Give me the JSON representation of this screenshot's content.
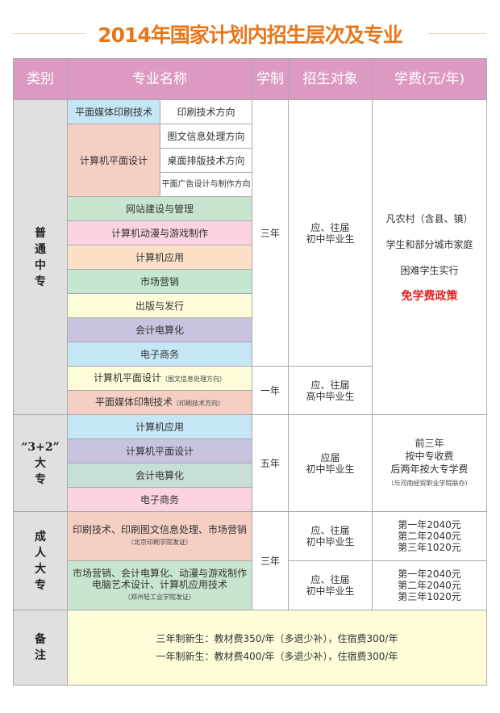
{
  "title": "2014年国家计划内招生层次及专业",
  "header": [
    "类别",
    "专业名称",
    "学制",
    "招生对象",
    "学费(元/年)"
  ],
  "colors": {
    "title": "#e8761a",
    "header": "#dc9ac2",
    "highlight": "#e62020"
  },
  "zhongzhuan": {
    "category": [
      "普",
      "通",
      "中",
      "专"
    ],
    "row1": {
      "major": "平面媒体印刷技术",
      "direction": "印刷技术方向"
    },
    "group": {
      "major": "计算机平面设计",
      "directions": [
        "图文信息处理方向",
        "桌面排版技术方向",
        "平面广告设计与制作方向"
      ]
    },
    "majors": [
      "网站建设与管理",
      "计算机动漫与游戏制作",
      "计算机应用",
      "市场营销",
      "出版与发行",
      "会计电算化",
      "电子商务"
    ],
    "duration": "三年",
    "target": [
      "应、往届",
      "初中毕业生"
    ],
    "fee": [
      "凡农村（含县、镇）",
      "学生和部分城市家庭",
      "困难学生实行"
    ],
    "fee_highlight": "免学费政策",
    "one_year": {
      "majors": [
        {
          "name": "计算机平面设计",
          "note": "（图文信息处理方向）"
        },
        {
          "name": "平面媒体印制技术",
          "note": "（印刷技术方向）"
        }
      ],
      "duration": "一年",
      "target": [
        "应、往届",
        "高中毕业生"
      ]
    }
  },
  "dazhuan": {
    "category": [
      "“3+2”",
      "大",
      "专"
    ],
    "majors": [
      "计算机应用",
      "计算机平面设计",
      "会计电算化",
      "电子商务"
    ],
    "duration": "五年",
    "target": [
      "应届",
      "初中毕业生"
    ],
    "fee": [
      "前三年",
      "按中专收费",
      "后两年按大专学费"
    ],
    "fee_note": "（与河南经贸职业学院联办）"
  },
  "chengren": {
    "category": [
      "成",
      "人",
      "大",
      "专"
    ],
    "duration": "三年",
    "rows": [
      {
        "majors": [
          "印刷技术、印刷图文信息处理、市场营销"
        ],
        "note": "（北京印刷学院发证）",
        "target": [
          "应、往届",
          "初中毕业生"
        ],
        "fee": [
          "第一年2040元",
          "第二年2040元",
          "第三年1020元"
        ]
      },
      {
        "majors": [
          "市场营销、会计电算化、动漫与游戏制作",
          "电脑艺术设计、计算机应用技术"
        ],
        "note": "（郑州轻工业学院发证）",
        "target": [
          "应、往届",
          "初中毕业生"
        ],
        "fee": [
          "第一年2040元",
          "第二年2040元",
          "第三年1020元"
        ]
      }
    ]
  },
  "notes": {
    "category": [
      "备",
      "注"
    ],
    "lines": [
      "三年制新生：教材费350/年（多退少补），住宿费300/年",
      "一年制新生：教材费400/年（多退少补），住宿费300/年"
    ]
  }
}
